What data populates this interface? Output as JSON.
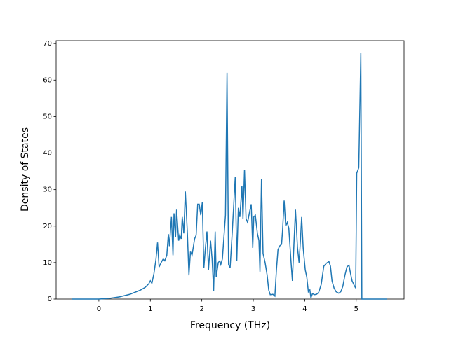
{
  "chart_data": {
    "type": "line",
    "xlabel": "Frequency (THz)",
    "ylabel": "Density of States",
    "xlim": [
      -0.83,
      5.93
    ],
    "ylim": [
      0,
      70.8
    ],
    "xticks": [
      0,
      1,
      2,
      3,
      4,
      5
    ],
    "yticks": [
      0,
      10,
      20,
      30,
      40,
      50,
      60,
      70
    ],
    "series": [
      {
        "color": "#1f77b4",
        "x": [
          -0.53,
          -0.2,
          0,
          0.2,
          0.4,
          0.6,
          0.8,
          0.9,
          0.97,
          1.0,
          1.03,
          1.07,
          1.11,
          1.14,
          1.17,
          1.21,
          1.25,
          1.28,
          1.32,
          1.35,
          1.37,
          1.41,
          1.44,
          1.46,
          1.49,
          1.51,
          1.55,
          1.57,
          1.6,
          1.62,
          1.65,
          1.68,
          1.72,
          1.75,
          1.78,
          1.81,
          1.86,
          1.89,
          1.92,
          1.95,
          1.98,
          2.01,
          2.04,
          2.07,
          2.1,
          2.13,
          2.17,
          2.2,
          2.23,
          2.26,
          2.28,
          2.32,
          2.35,
          2.37,
          2.4,
          2.46,
          2.49,
          2.52,
          2.55,
          2.59,
          2.65,
          2.68,
          2.71,
          2.74,
          2.78,
          2.8,
          2.83,
          2.86,
          2.89,
          2.93,
          2.96,
          2.99,
          3.01,
          3.04,
          3.08,
          3.11,
          3.13,
          3.16,
          3.19,
          3.23,
          3.27,
          3.3,
          3.33,
          3.38,
          3.42,
          3.45,
          3.48,
          3.51,
          3.55,
          3.57,
          3.6,
          3.63,
          3.66,
          3.69,
          3.73,
          3.76,
          3.79,
          3.82,
          3.86,
          3.89,
          3.92,
          3.94,
          3.97,
          4.01,
          4.04,
          4.07,
          4.1,
          4.12,
          4.15,
          4.19,
          4.23,
          4.27,
          4.32,
          4.37,
          4.42,
          4.47,
          4.5,
          4.53,
          4.57,
          4.61,
          4.66,
          4.7,
          4.74,
          4.78,
          4.82,
          4.86,
          4.89,
          4.92,
          4.96,
          4.99,
          5.01,
          5.05,
          5.09,
          5.11,
          5.6
        ],
        "values": [
          0,
          0,
          0,
          0.2,
          0.6,
          1.3,
          2.4,
          3.2,
          4.2,
          5,
          4.3,
          7,
          11,
          15.5,
          8.8,
          10,
          11,
          10.5,
          12,
          17.8,
          14.5,
          22.5,
          12,
          23.5,
          17,
          24.5,
          16,
          17.5,
          16.5,
          22.5,
          18,
          29.5,
          18,
          6.5,
          13,
          12,
          16.5,
          17.5,
          26,
          26,
          23,
          26.5,
          8.5,
          14,
          18.5,
          8,
          16,
          11,
          2.3,
          18.5,
          6,
          10,
          10.5,
          9.5,
          11,
          23,
          62,
          9.5,
          8.5,
          18,
          33.5,
          10.5,
          25,
          22.5,
          31,
          22,
          35.5,
          22,
          21,
          24,
          26,
          14,
          22.5,
          23,
          18,
          16,
          7.5,
          33,
          12.5,
          10,
          6.5,
          2.5,
          1.2,
          1.3,
          0.8,
          8,
          13.5,
          14.5,
          15,
          19,
          27,
          20,
          21,
          19.5,
          11,
          5,
          15,
          24.5,
          14,
          10,
          17,
          22.5,
          14,
          8,
          6,
          2,
          2.5,
          0.3,
          1.5,
          1.2,
          1.3,
          1.8,
          4,
          9,
          9.8,
          10.3,
          9,
          5,
          3,
          2,
          1.6,
          2,
          3.5,
          6.5,
          8.8,
          9.3,
          7,
          5,
          3.8,
          3,
          34.5,
          36,
          67.5,
          0,
          0
        ]
      }
    ]
  }
}
